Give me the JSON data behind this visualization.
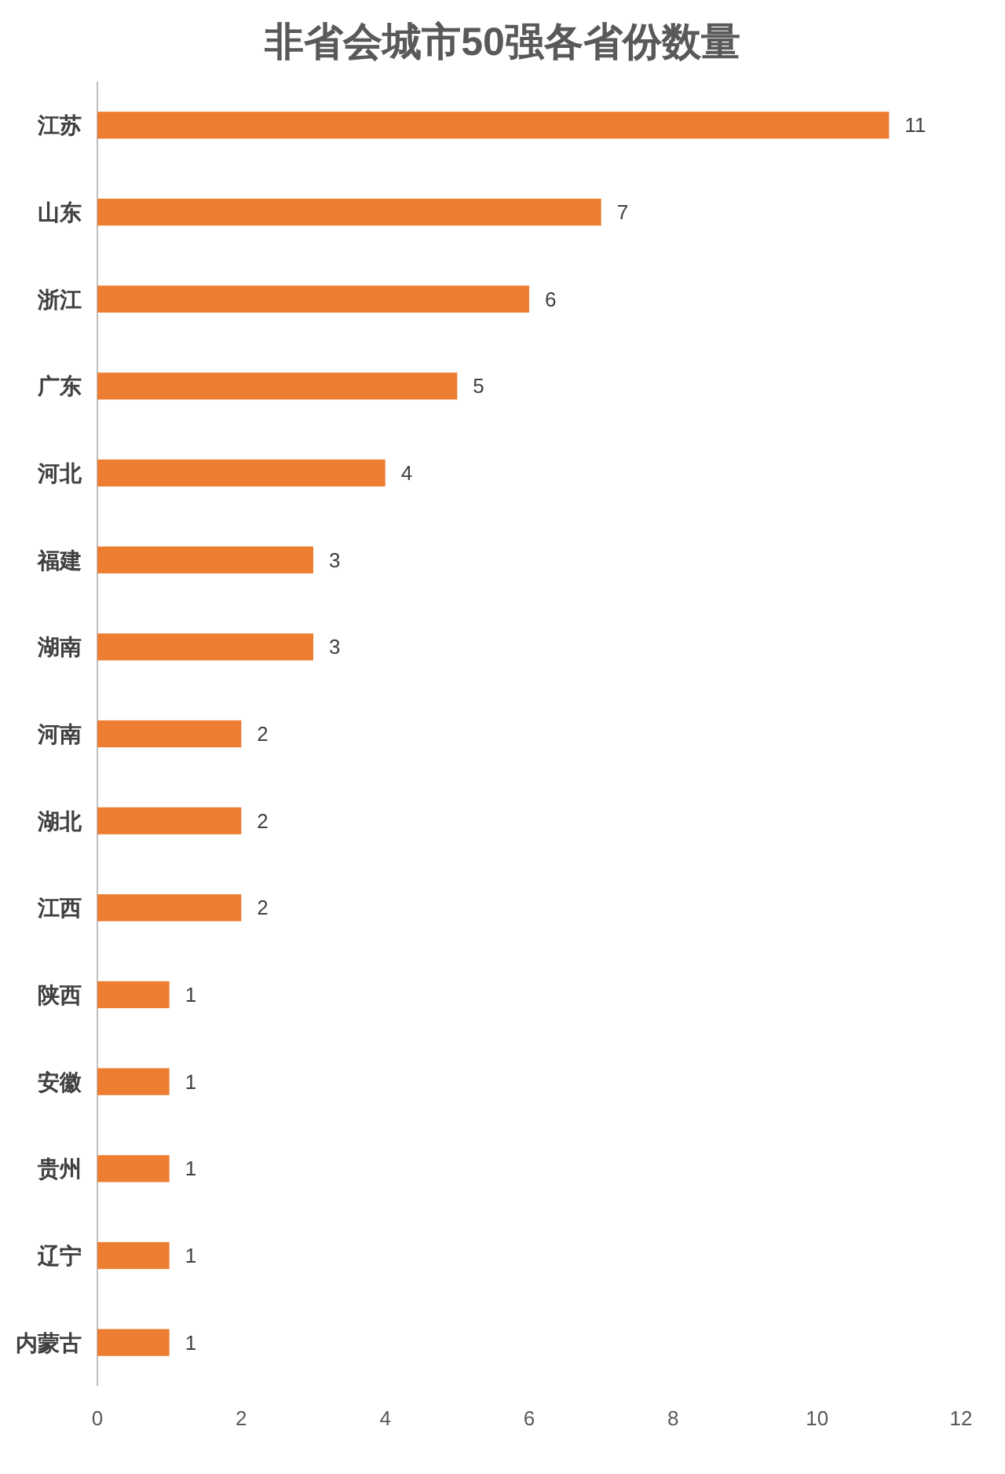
{
  "chart_data": {
    "type": "bar",
    "orientation": "horizontal",
    "title": "非省会城市50强各省份数量",
    "categories": [
      "江苏",
      "山东",
      "浙江",
      "广东",
      "河北",
      "福建",
      "湖南",
      "河南",
      "湖北",
      "江西",
      "陕西",
      "安徽",
      "贵州",
      "辽宁",
      "内蒙古"
    ],
    "values": [
      11,
      7,
      6,
      5,
      4,
      3,
      3,
      2,
      2,
      2,
      1,
      1,
      1,
      1,
      1
    ],
    "color": "#ed7d31",
    "xlim": [
      0,
      12
    ],
    "xticks": [
      0,
      2,
      4,
      6,
      8,
      10,
      12
    ],
    "data_labels": true,
    "grid": false
  }
}
